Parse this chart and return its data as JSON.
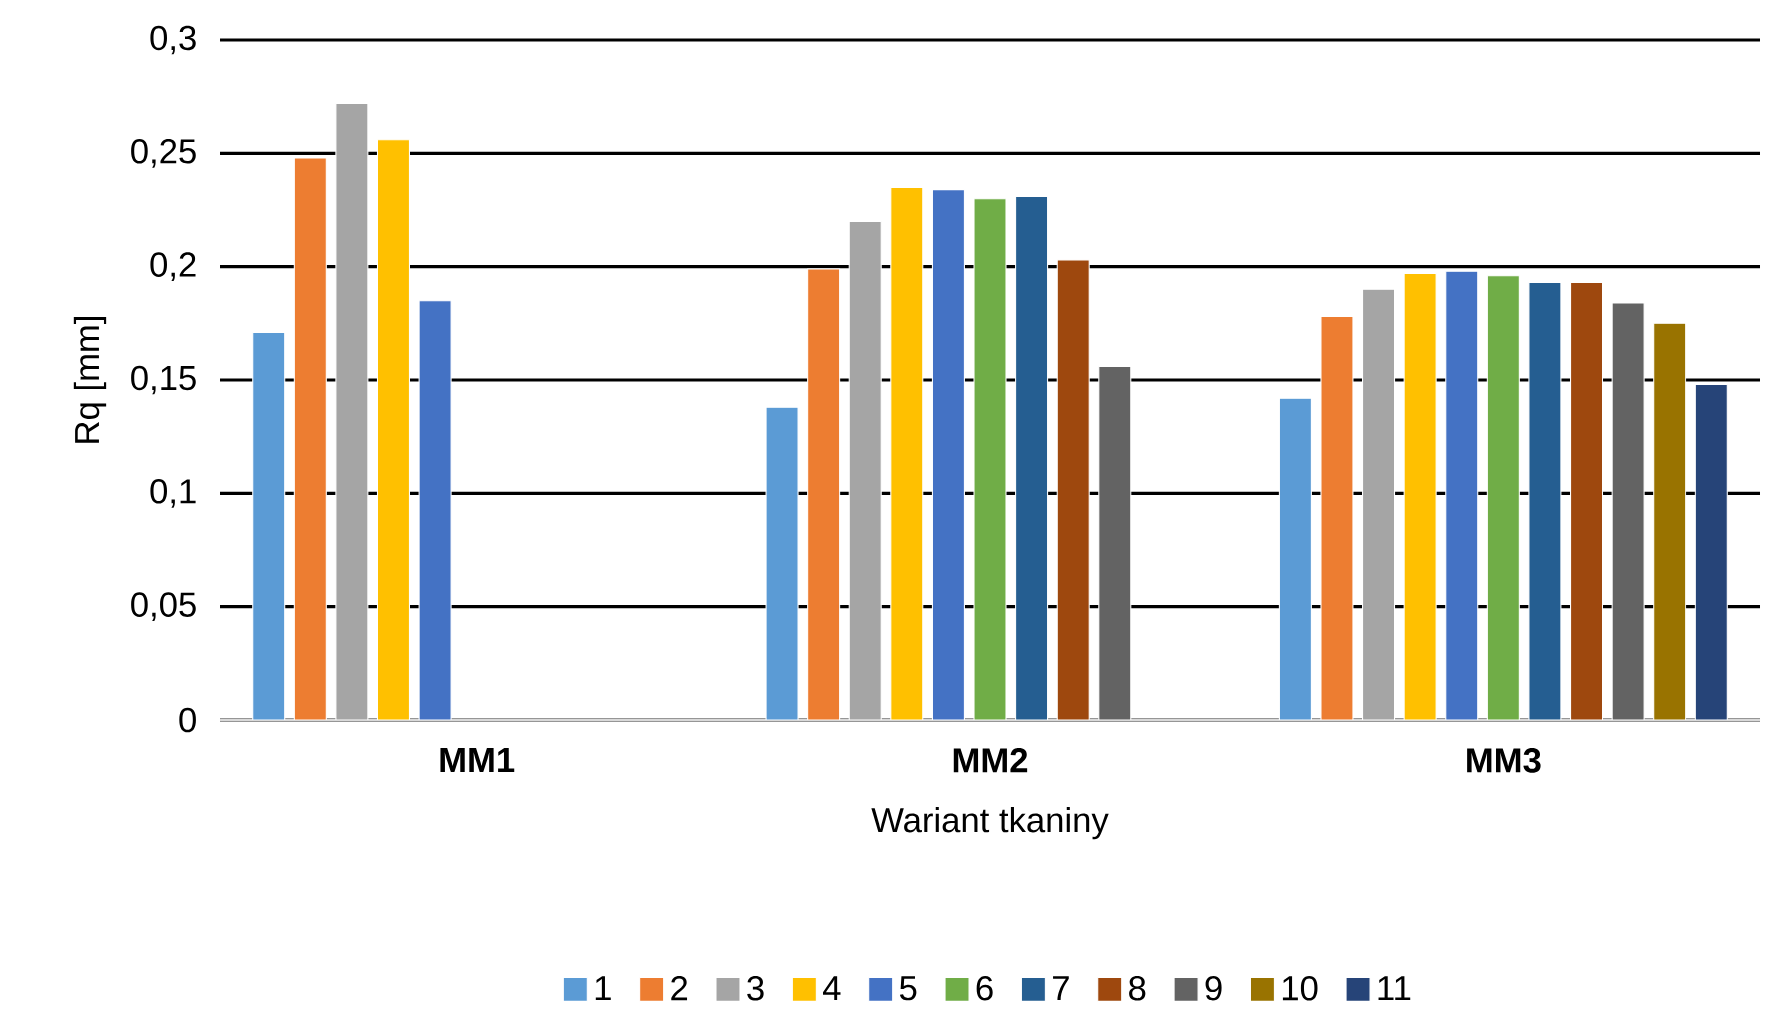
{
  "chart_data": {
    "type": "bar",
    "xlabel": "Wariant tkaniny",
    "ylabel": "Rq   [mm]",
    "categories": [
      "MM1",
      "MM2",
      "MM3"
    ],
    "ylim": [
      0,
      0.3
    ],
    "yticks": [
      {
        "value": 0,
        "label": "0"
      },
      {
        "value": 0.05,
        "label": "0,05"
      },
      {
        "value": 0.1,
        "label": "0,1"
      },
      {
        "value": 0.15,
        "label": "0,15"
      },
      {
        "value": 0.2,
        "label": "0,2"
      },
      {
        "value": 0.25,
        "label": "0,25"
      },
      {
        "value": 0.3,
        "label": "0,3"
      }
    ],
    "grid": "y",
    "legend": "bottom",
    "series": [
      {
        "name": "1",
        "color": "#5b9bd5",
        "values": [
          0.171,
          0.138,
          0.142
        ]
      },
      {
        "name": "2",
        "color": "#ed7d31",
        "values": [
          0.248,
          0.199,
          0.178
        ]
      },
      {
        "name": "3",
        "color": "#a5a5a5",
        "values": [
          0.272,
          0.22,
          0.19
        ]
      },
      {
        "name": "4",
        "color": "#ffc000",
        "values": [
          0.256,
          0.235,
          0.197
        ]
      },
      {
        "name": "5",
        "color": "#4472c4",
        "values": [
          0.185,
          0.234,
          0.198
        ]
      },
      {
        "name": "6",
        "color": "#70ad47",
        "values": [
          null,
          0.23,
          0.196
        ]
      },
      {
        "name": "7",
        "color": "#255e91",
        "values": [
          null,
          0.231,
          0.193
        ]
      },
      {
        "name": "8",
        "color": "#9e480e",
        "values": [
          null,
          0.203,
          0.193
        ]
      },
      {
        "name": "9",
        "color": "#636363",
        "values": [
          null,
          0.156,
          0.184
        ]
      },
      {
        "name": "10",
        "color": "#997300",
        "values": [
          null,
          null,
          0.175
        ]
      },
      {
        "name": "11",
        "color": "#264478",
        "values": [
          null,
          null,
          0.148
        ]
      }
    ]
  }
}
